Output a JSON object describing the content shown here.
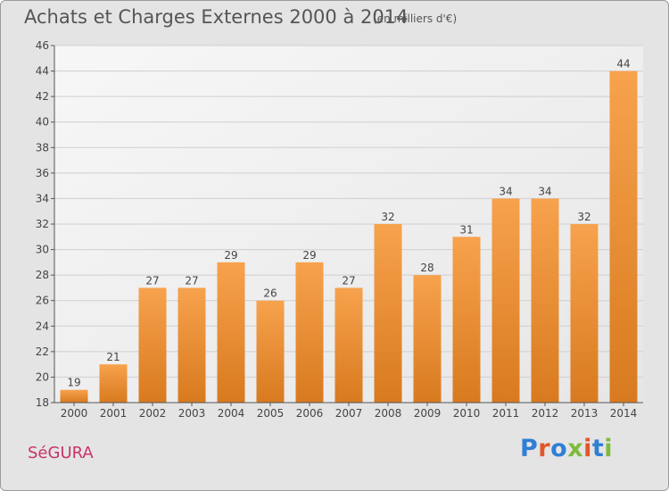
{
  "header": {
    "title": "Achats et Charges Externes 2000 à 2014",
    "unit": "(en milliers d'€)"
  },
  "footer": {
    "commune": "SéGURA",
    "logo": "Proxiti"
  },
  "colors": {
    "bar_light": "#f7a24d",
    "bar_dark": "#d87a1f",
    "commune": "#c9336a",
    "logo_letters": [
      "#2f7fd4",
      "#e0572a",
      "#2f7fd4",
      "#7fba3b",
      "#e0572a",
      "#2f7fd4",
      "#7fba3b"
    ]
  },
  "chart_data": {
    "type": "bar",
    "categories": [
      "2000",
      "2001",
      "2002",
      "2003",
      "2004",
      "2005",
      "2006",
      "2007",
      "2008",
      "2009",
      "2010",
      "2011",
      "2012",
      "2013",
      "2014"
    ],
    "values": [
      19,
      21,
      27,
      27,
      29,
      26,
      29,
      27,
      32,
      28,
      31,
      34,
      34,
      32,
      44
    ],
    "title": "Achats et Charges Externes 2000 à 2014",
    "ylim": [
      18,
      46
    ],
    "yticks": [
      18,
      20,
      22,
      24,
      26,
      28,
      30,
      32,
      34,
      36,
      38,
      40,
      42,
      44,
      46
    ],
    "grid": true,
    "data_labels": true
  }
}
